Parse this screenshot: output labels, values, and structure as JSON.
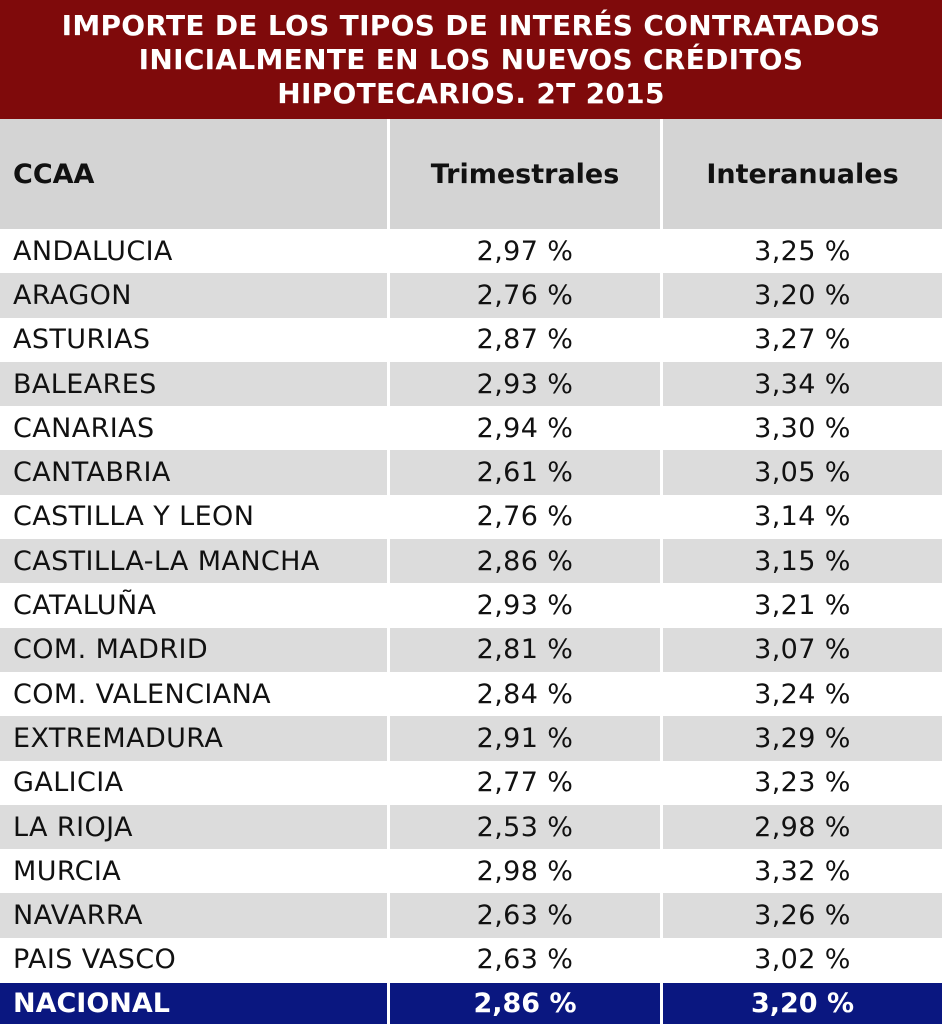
{
  "chart_data": {
    "type": "table",
    "title": "IMPORTE DE LOS TIPOS DE INTERÉS CONTRATADOS\nINICIALMENTE EN LOS NUEVOS CRÉDITOS\nHIPOTECARIOS. 2T 2015",
    "columns": [
      "CCAA",
      "Trimestrales",
      "Interanuales"
    ],
    "rows": [
      [
        "ANDALUCIA",
        "2,97 %",
        "3,25 %"
      ],
      [
        "ARAGON",
        "2,76 %",
        "3,20 %"
      ],
      [
        "ASTURIAS",
        "2,87 %",
        "3,27 %"
      ],
      [
        "BALEARES",
        "2,93 %",
        "3,34 %"
      ],
      [
        "CANARIAS",
        "2,94 %",
        "3,30 %"
      ],
      [
        "CANTABRIA",
        "2,61 %",
        "3,05 %"
      ],
      [
        "CASTILLA Y LEON",
        "2,76 %",
        "3,14 %"
      ],
      [
        "CASTILLA-LA MANCHA",
        "2,86 %",
        "3,15 %"
      ],
      [
        "CATALUÑA",
        "2,93 %",
        "3,21 %"
      ],
      [
        "COM. MADRID",
        "2,81 %",
        "3,07 %"
      ],
      [
        "COM. VALENCIANA",
        "2,84 %",
        "3,24 %"
      ],
      [
        "EXTREMADURA",
        "2,91 %",
        "3,29 %"
      ],
      [
        "GALICIA",
        "2,77 %",
        "3,23 %"
      ],
      [
        "LA RIOJA",
        "2,53 %",
        "2,98 %"
      ],
      [
        "MURCIA",
        "2,98 %",
        "3,32 %"
      ],
      [
        "NAVARRA",
        "2,63 %",
        "3,26 %"
      ],
      [
        "PAIS VASCO",
        "2,63 %",
        "3,02 %"
      ]
    ],
    "total": [
      "NACIONAL",
      "2,86 %",
      "3,20 %"
    ],
    "colors": {
      "title_bg": "#7f0a0b",
      "header_bg": "#d4d4d4",
      "stripe_bg": "#dcdcdc",
      "total_bg": "#0a1780"
    }
  }
}
